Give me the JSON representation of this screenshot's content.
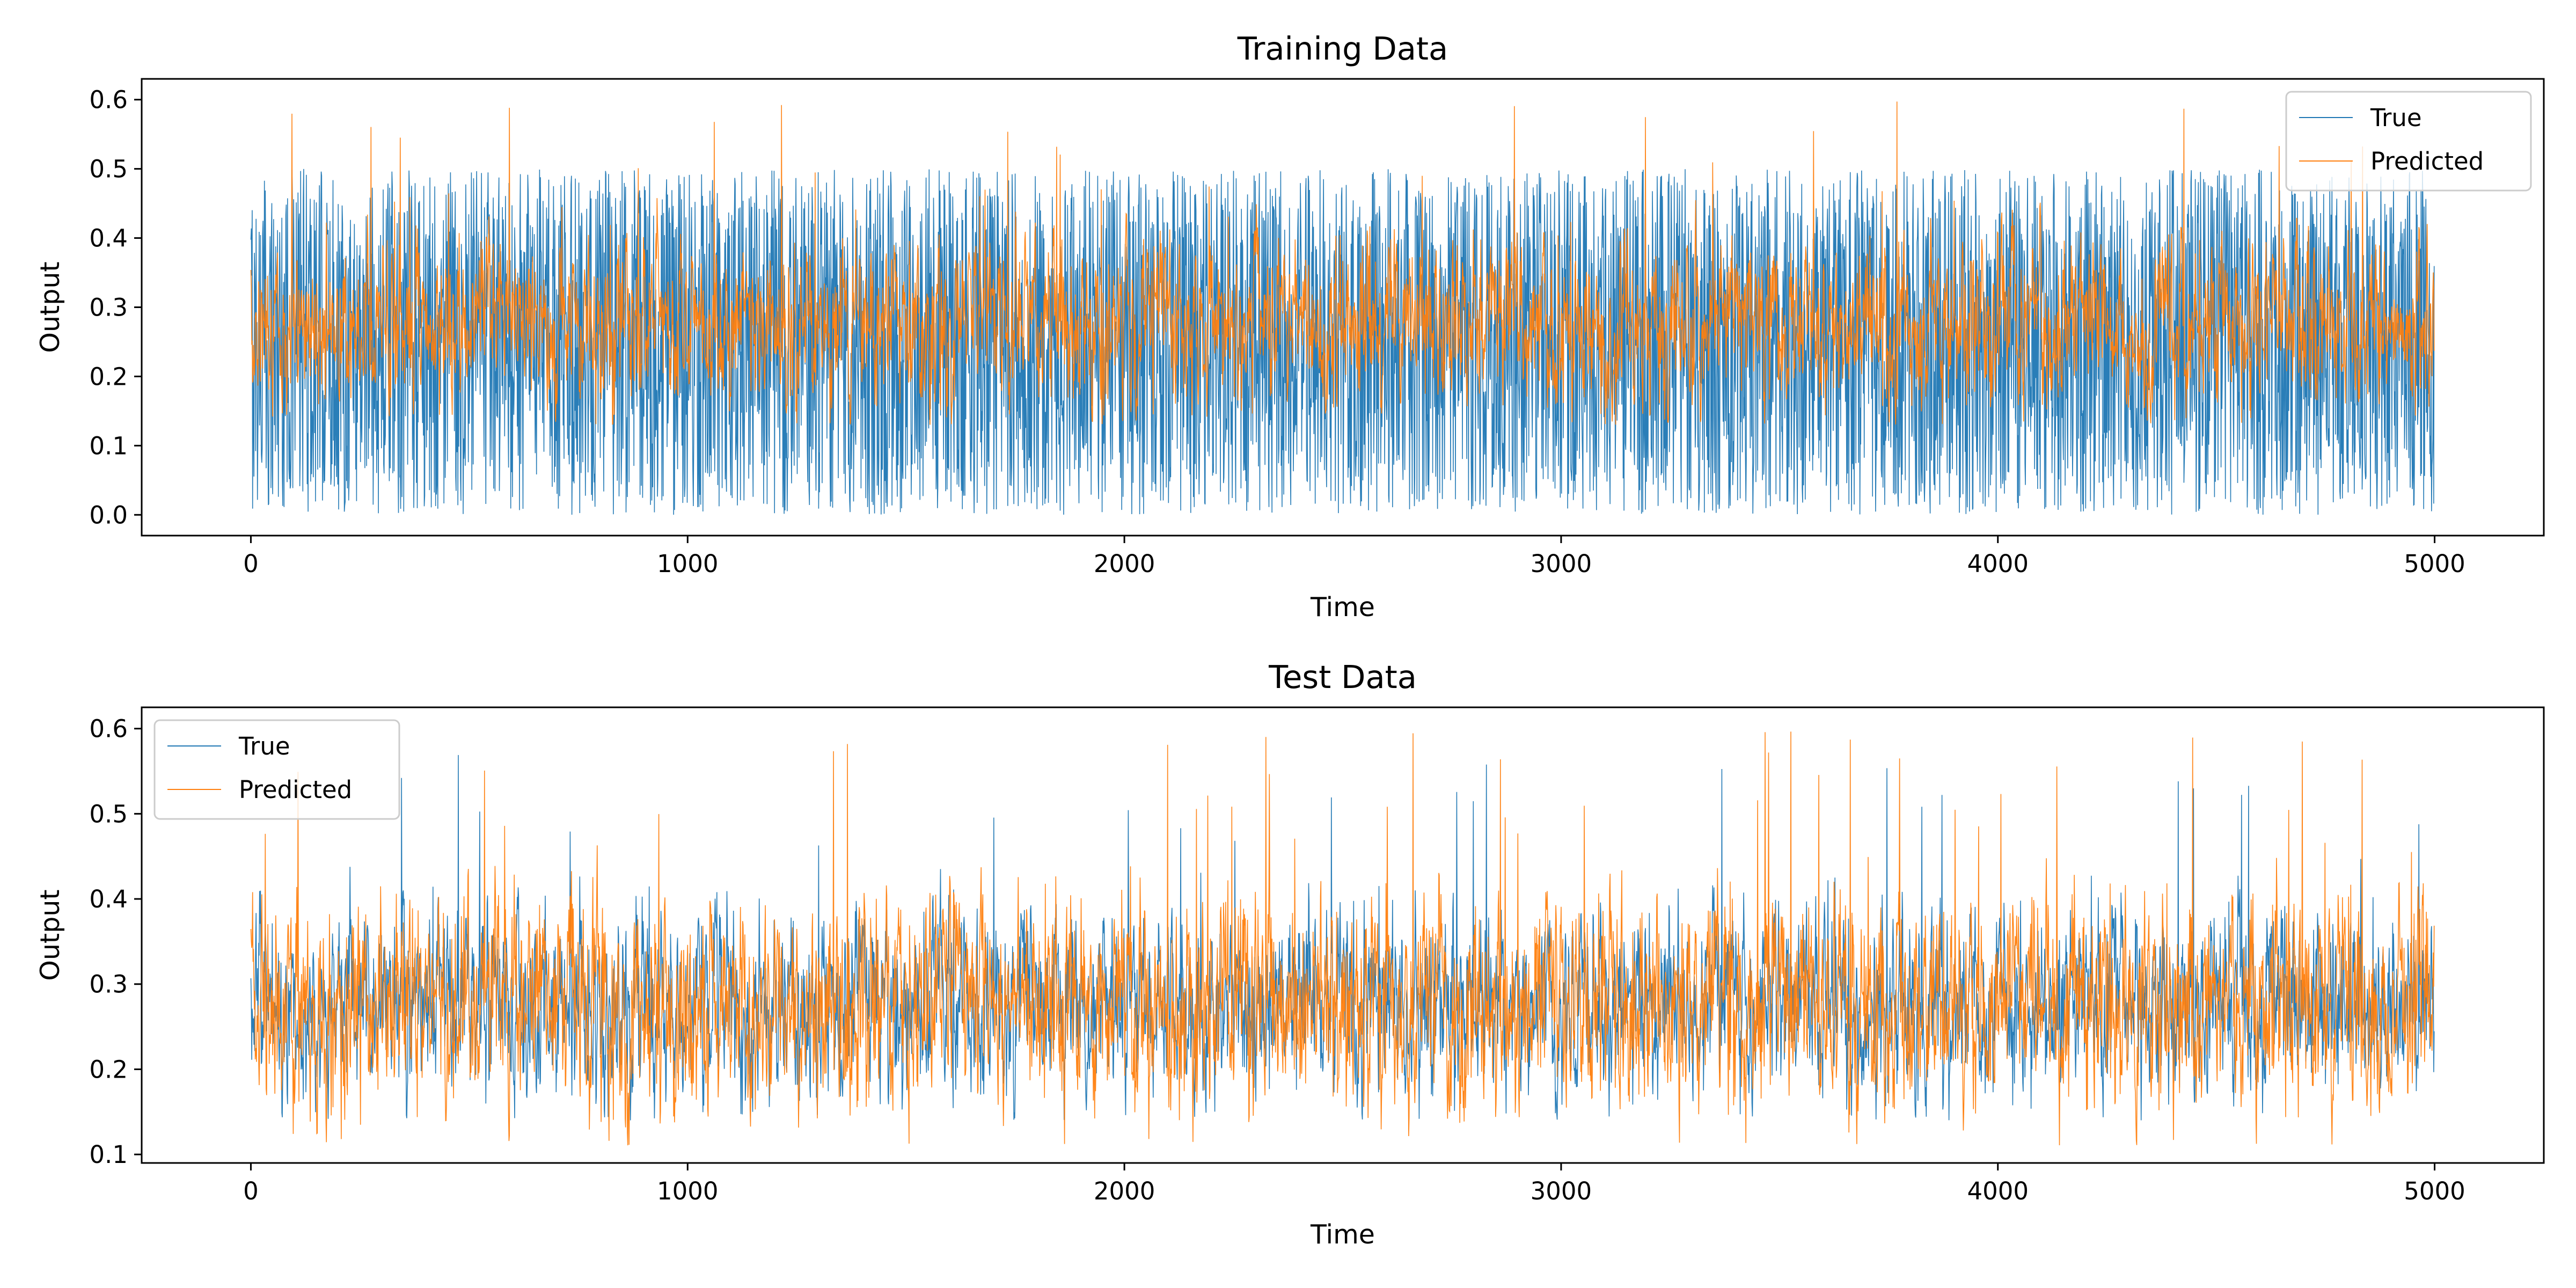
{
  "colors": {
    "true": "#1f77b4",
    "predicted": "#ff7f0e"
  },
  "chart_data": [
    {
      "type": "line",
      "title": "Training Data",
      "xlabel": "Time",
      "ylabel": "Output",
      "xlim": [
        -250,
        5250
      ],
      "ylim": [
        -0.03,
        0.63
      ],
      "xticks": [
        0,
        1000,
        2000,
        3000,
        4000,
        5000
      ],
      "xtick_labels": [
        "0",
        "1000",
        "2000",
        "3000",
        "4000",
        "5000"
      ],
      "yticks": [
        0.0,
        0.1,
        0.2,
        0.3,
        0.4,
        0.5,
        0.6
      ],
      "ytick_labels": [
        "0.0",
        "0.1",
        "0.2",
        "0.3",
        "0.4",
        "0.5",
        "0.6"
      ],
      "grid": false,
      "legend": "upper right",
      "series": [
        {
          "name": "True",
          "color": "#1f77b4",
          "x": [
            0,
            250,
            500,
            750,
            1000,
            1250,
            1500,
            1750,
            2000,
            2250,
            2500,
            2750,
            3000,
            3250,
            3500,
            3750,
            4000,
            4250,
            4500,
            4750,
            5000
          ],
          "y": [
            0.25,
            0.25,
            0.24,
            0.25,
            0.25,
            0.24,
            0.26,
            0.25,
            0.25,
            0.24,
            0.25,
            0.25,
            0.24,
            0.25,
            0.25,
            0.24,
            0.25,
            0.25,
            0.24,
            0.25,
            0.25
          ],
          "y_min": 0.0,
          "y_max": 0.5
        },
        {
          "name": "Predicted",
          "color": "#ff7f0e",
          "x": [
            0,
            250,
            500,
            750,
            1000,
            1250,
            1500,
            1750,
            2000,
            2250,
            2500,
            2750,
            3000,
            3250,
            3500,
            3750,
            4000,
            4250,
            4500,
            4750,
            5000
          ],
          "y": [
            0.28,
            0.27,
            0.28,
            0.27,
            0.28,
            0.27,
            0.28,
            0.29,
            0.27,
            0.28,
            0.27,
            0.28,
            0.28,
            0.27,
            0.28,
            0.27,
            0.28,
            0.28,
            0.27,
            0.28,
            0.27
          ],
          "y_min": 0.13,
          "y_max": 0.6
        }
      ]
    },
    {
      "type": "line",
      "title": "Test Data",
      "xlabel": "Time",
      "ylabel": "Output",
      "xlim": [
        -250,
        5250
      ],
      "ylim": [
        0.09,
        0.625
      ],
      "xticks": [
        0,
        1000,
        2000,
        3000,
        4000,
        5000
      ],
      "xtick_labels": [
        "0",
        "1000",
        "2000",
        "3000",
        "4000",
        "5000"
      ],
      "yticks": [
        0.1,
        0.2,
        0.3,
        0.4,
        0.5,
        0.6
      ],
      "ytick_labels": [
        "0.1",
        "0.2",
        "0.3",
        "0.4",
        "0.5",
        "0.6"
      ],
      "grid": false,
      "legend": "upper left",
      "series": [
        {
          "name": "True",
          "color": "#1f77b4",
          "x": [
            0,
            250,
            500,
            750,
            1000,
            1250,
            1500,
            1750,
            2000,
            2250,
            2500,
            2750,
            3000,
            3250,
            3500,
            3750,
            4000,
            4250,
            4500,
            4750,
            5000
          ],
          "y": [
            0.28,
            0.27,
            0.28,
            0.28,
            0.27,
            0.28,
            0.27,
            0.28,
            0.28,
            0.27,
            0.28,
            0.27,
            0.27,
            0.28,
            0.28,
            0.27,
            0.28,
            0.27,
            0.28,
            0.28,
            0.27
          ],
          "y_min": 0.14,
          "y_max": 0.57
        },
        {
          "name": "Predicted",
          "color": "#ff7f0e",
          "x": [
            0,
            250,
            500,
            750,
            1000,
            1250,
            1500,
            1750,
            2000,
            2250,
            2500,
            2750,
            3000,
            3250,
            3500,
            3750,
            4000,
            4250,
            4500,
            4750,
            5000
          ],
          "y": [
            0.28,
            0.27,
            0.28,
            0.28,
            0.27,
            0.28,
            0.27,
            0.28,
            0.27,
            0.27,
            0.28,
            0.27,
            0.27,
            0.28,
            0.28,
            0.27,
            0.28,
            0.27,
            0.28,
            0.28,
            0.27
          ],
          "y_min": 0.11,
          "y_max": 0.6
        }
      ]
    }
  ]
}
